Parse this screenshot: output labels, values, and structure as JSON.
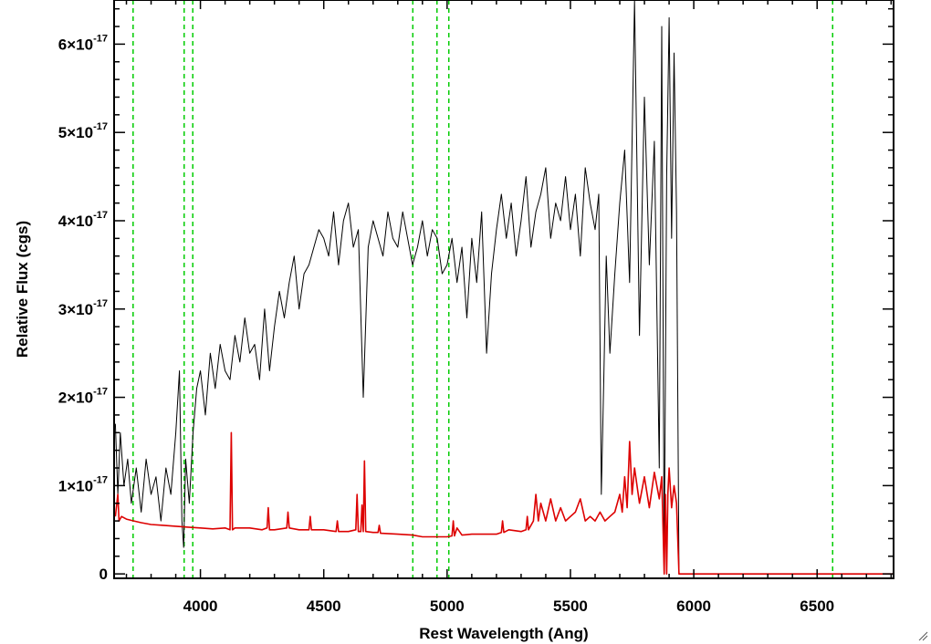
{
  "chart_data": {
    "type": "line",
    "xlabel": "Rest Wavelength (Ang)",
    "ylabel": "Relative Flux (cgs)",
    "xlim": [
      3650,
      6810
    ],
    "ylim": [
      -0.05,
      6.5
    ],
    "y_scale_label": "×10^-17",
    "x_ticks": [
      {
        "value": 4000,
        "label": "4000"
      },
      {
        "value": 4500,
        "label": "4500"
      },
      {
        "value": 5000,
        "label": "5000"
      },
      {
        "value": 5500,
        "label": "5500"
      },
      {
        "value": 6000,
        "label": "6000"
      },
      {
        "value": 6500,
        "label": "6500"
      }
    ],
    "y_ticks": [
      {
        "value": 0,
        "mant": "0",
        "exp": ""
      },
      {
        "value": 1,
        "mant": "1×10",
        "exp": "-17"
      },
      {
        "value": 2,
        "mant": "2×10",
        "exp": "-17"
      },
      {
        "value": 3,
        "mant": "3×10",
        "exp": "-17"
      },
      {
        "value": 4,
        "mant": "4×10",
        "exp": "-17"
      },
      {
        "value": 5,
        "mant": "5×10",
        "exp": "-17"
      },
      {
        "value": 6,
        "mant": "6×10",
        "exp": "-17"
      }
    ],
    "vlines": {
      "color": "#00cc00",
      "style": "dashed",
      "x": [
        3727,
        3934,
        3969,
        4861,
        4959,
        5007,
        6563
      ]
    },
    "series": [
      {
        "color": "#000000",
        "x": [
          3655,
          3665,
          3675,
          3690,
          3705,
          3720,
          3740,
          3760,
          3780,
          3800,
          3820,
          3840,
          3860,
          3880,
          3900,
          3915,
          3925,
          3932,
          3940,
          3955,
          3970,
          3985,
          4000,
          4020,
          4040,
          4060,
          4080,
          4100,
          4120,
          4140,
          4160,
          4180,
          4200,
          4220,
          4240,
          4260,
          4280,
          4300,
          4320,
          4340,
          4360,
          4380,
          4400,
          4420,
          4440,
          4460,
          4480,
          4500,
          4520,
          4540,
          4560,
          4580,
          4600,
          4620,
          4640,
          4660,
          4680,
          4700,
          4720,
          4740,
          4760,
          4780,
          4800,
          4820,
          4840,
          4860,
          4880,
          4900,
          4920,
          4940,
          4960,
          4980,
          5000,
          5020,
          5040,
          5060,
          5080,
          5100,
          5120,
          5140,
          5160,
          5180,
          5200,
          5220,
          5240,
          5260,
          5280,
          5300,
          5320,
          5340,
          5360,
          5380,
          5400,
          5420,
          5440,
          5460,
          5480,
          5500,
          5520,
          5540,
          5560,
          5580,
          5600,
          5615,
          5625,
          5635,
          5645,
          5660,
          5680,
          5700,
          5720,
          5740,
          5760,
          5780,
          5800,
          5820,
          5840,
          5860,
          5870,
          5880,
          5890,
          5900,
          5910,
          5920,
          5930,
          5940
        ],
        "y": [
          1.7,
          0.9,
          1.6,
          1.0,
          1.3,
          0.8,
          1.2,
          0.7,
          1.3,
          0.9,
          1.1,
          0.6,
          1.2,
          0.9,
          1.6,
          2.3,
          0.6,
          0.3,
          1.3,
          0.8,
          1.6,
          2.1,
          2.3,
          1.8,
          2.5,
          2.1,
          2.6,
          2.3,
          2.2,
          2.7,
          2.4,
          2.9,
          2.5,
          2.6,
          2.2,
          3.0,
          2.3,
          2.8,
          3.2,
          2.9,
          3.3,
          3.6,
          3.0,
          3.4,
          3.5,
          3.7,
          3.9,
          3.8,
          3.6,
          4.1,
          3.5,
          4.0,
          4.2,
          3.7,
          3.9,
          2.0,
          3.7,
          4.0,
          3.8,
          3.6,
          4.1,
          3.8,
          3.7,
          4.1,
          3.8,
          3.5,
          3.7,
          4.0,
          3.6,
          3.9,
          3.8,
          3.4,
          3.5,
          3.8,
          3.3,
          3.7,
          2.9,
          3.8,
          3.3,
          4.1,
          2.5,
          3.4,
          3.9,
          4.3,
          3.8,
          4.2,
          3.6,
          4.0,
          4.5,
          3.7,
          4.1,
          4.3,
          4.6,
          3.8,
          4.2,
          4.0,
          4.5,
          3.9,
          4.3,
          3.6,
          4.6,
          4.2,
          3.9,
          4.3,
          0.9,
          2.2,
          3.6,
          2.5,
          3.4,
          4.2,
          4.8,
          3.3,
          6.5,
          2.7,
          5.4,
          3.5,
          4.9,
          1.2,
          6.2,
          0.1,
          4.5,
          6.3,
          3.8,
          5.9,
          4.1,
          0.0
        ],
        "x_flat": [
          5940,
          6810
        ],
        "y_flat": 0
      },
      {
        "color": "#dd0000",
        "x": [
          3655,
          3665,
          3670,
          3680,
          3700,
          3730,
          3760,
          3800,
          3850,
          3900,
          3950,
          4000,
          4050,
          4100,
          4120,
          4125,
          4130,
          4140,
          4200,
          4250,
          4270,
          4275,
          4280,
          4300,
          4350,
          4355,
          4360,
          4400,
          4440,
          4445,
          4450,
          4500,
          4550,
          4555,
          4560,
          4600,
          4630,
          4635,
          4640,
          4650,
          4655,
          4660,
          4665,
          4670,
          4700,
          4720,
          4725,
          4730,
          4800,
          4860,
          4900,
          4960,
          5000,
          5020,
          5025,
          5030,
          5040,
          5060,
          5100,
          5150,
          5200,
          5220,
          5225,
          5230,
          5250,
          5300,
          5320,
          5325,
          5330,
          5350,
          5360,
          5370,
          5380,
          5400,
          5420,
          5440,
          5460,
          5480,
          5500,
          5520,
          5540,
          5560,
          5580,
          5600,
          5620,
          5640,
          5660,
          5680,
          5700,
          5710,
          5720,
          5730,
          5740,
          5750,
          5760,
          5780,
          5800,
          5820,
          5840,
          5860,
          5870,
          5880,
          5885,
          5890,
          5895,
          5900,
          5910,
          5920,
          5930,
          5940
        ],
        "y": [
          0.65,
          0.9,
          0.6,
          0.65,
          0.62,
          0.6,
          0.58,
          0.56,
          0.55,
          0.54,
          0.53,
          0.52,
          0.51,
          0.52,
          0.5,
          1.6,
          0.5,
          0.52,
          0.52,
          0.5,
          0.52,
          0.75,
          0.5,
          0.5,
          0.52,
          0.7,
          0.52,
          0.5,
          0.5,
          0.65,
          0.5,
          0.5,
          0.48,
          0.6,
          0.48,
          0.48,
          0.5,
          0.9,
          0.48,
          0.48,
          0.78,
          0.48,
          1.28,
          0.48,
          0.47,
          0.47,
          0.55,
          0.46,
          0.45,
          0.44,
          0.42,
          0.42,
          0.42,
          0.43,
          0.6,
          0.43,
          0.52,
          0.44,
          0.45,
          0.45,
          0.45,
          0.47,
          0.6,
          0.47,
          0.5,
          0.48,
          0.5,
          0.65,
          0.5,
          0.6,
          0.9,
          0.6,
          0.8,
          0.6,
          0.85,
          0.6,
          0.75,
          0.6,
          0.65,
          0.7,
          0.85,
          0.6,
          0.65,
          0.6,
          0.7,
          0.6,
          0.65,
          0.7,
          0.9,
          0.7,
          1.1,
          0.75,
          1.5,
          0.9,
          1.2,
          0.8,
          1.1,
          0.75,
          1.15,
          0.85,
          1.1,
          0.0,
          0.9,
          0.0,
          0.9,
          1.2,
          0.75,
          1.0,
          0.8,
          0.0
        ],
        "x_flat": [
          5940,
          6810
        ],
        "y_flat": 0
      }
    ]
  }
}
